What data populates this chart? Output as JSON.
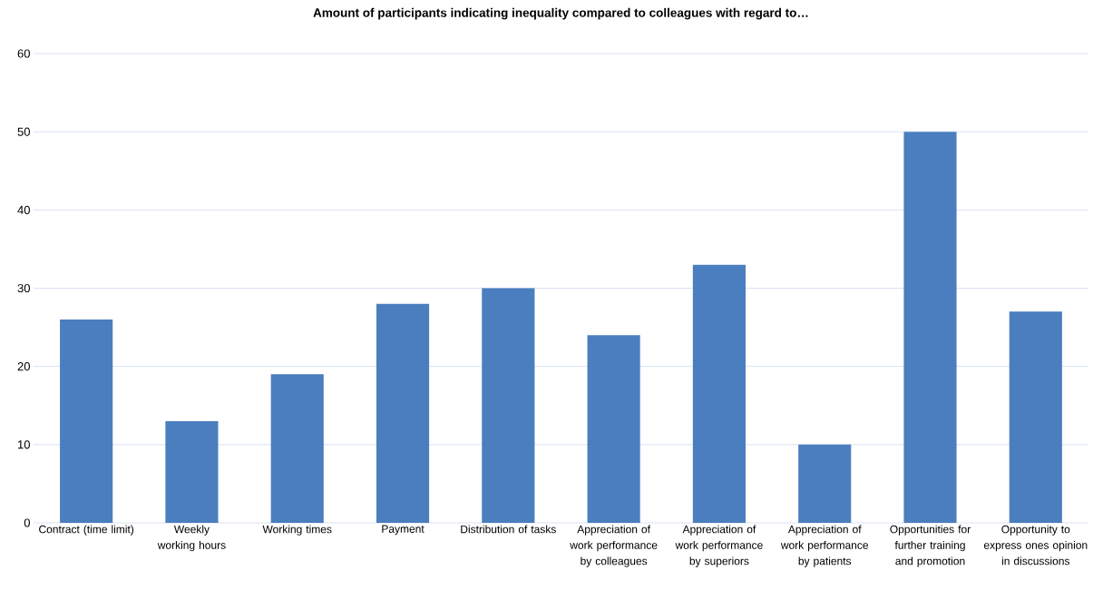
{
  "chart_data": {
    "type": "bar",
    "title": "Amount of participants indicating inequality compared to colleagues with regard to…",
    "categories": [
      "Contract (time limit)",
      "Weekly working hours",
      "Working times",
      "Payment",
      "Distribution of tasks",
      "Appreciation of work performance by colleagues",
      "Appreciation of work performance by superiors",
      "Appreciation of work performance by patients",
      "Opportunities for further training and promotion",
      "Opportunity to express ones opinion in discussions"
    ],
    "values": [
      26,
      13,
      19,
      28,
      30,
      24,
      33,
      10,
      50,
      27
    ],
    "color": "#4a7ebf",
    "ylim": [
      0,
      60
    ],
    "yticks": [
      0,
      10,
      20,
      30,
      40,
      50,
      60
    ],
    "grid": "y"
  }
}
